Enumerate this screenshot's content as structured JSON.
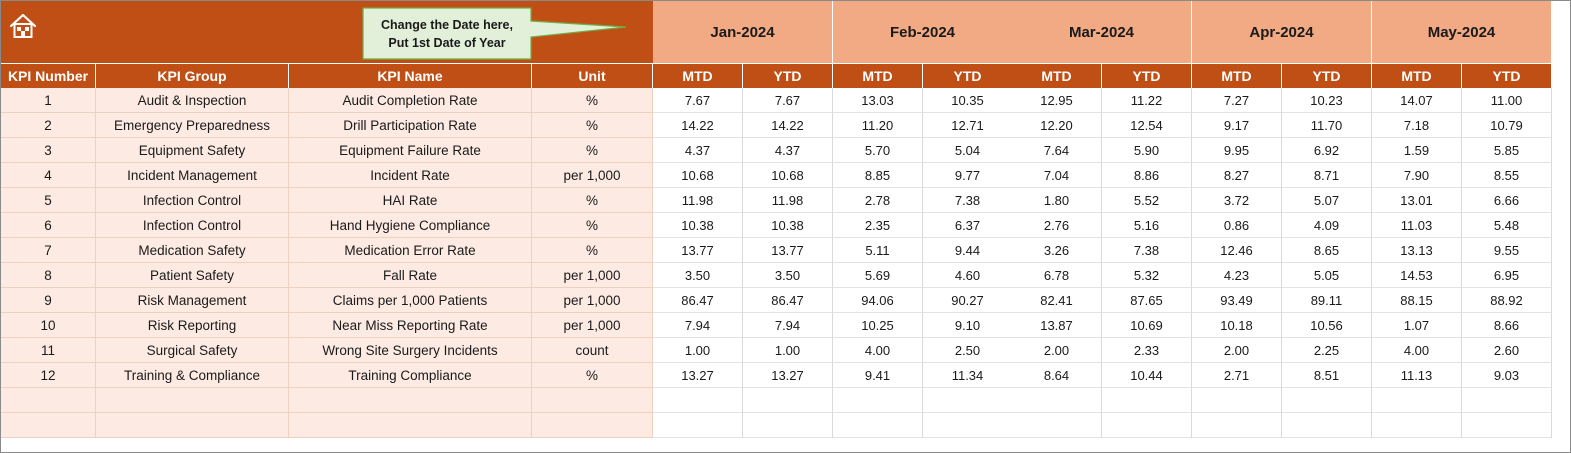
{
  "note": {
    "line1": "Change the Date here,",
    "line2": "Put 1st Date of Year"
  },
  "icons": {
    "home": "home-icon"
  },
  "colors": {
    "banner": "#c04f15",
    "month_header": "#f2aa84",
    "info_fill": "#fdebe3",
    "callout_fill": "#e2f0d9",
    "callout_border": "#70ad47"
  },
  "months": [
    "Jan-2024",
    "Feb-2024",
    "Mar-2024",
    "Apr-2024",
    "May-2024"
  ],
  "columns": {
    "kpi_number": "KPI Number",
    "kpi_group": "KPI Group",
    "kpi_name": "KPI Name",
    "unit": "Unit",
    "mtd": "MTD",
    "ytd": "YTD"
  },
  "rows": [
    {
      "no": "1",
      "group": "Audit & Inspection",
      "name": "Audit Completion Rate",
      "unit": "%",
      "vals": [
        "7.67",
        "7.67",
        "13.03",
        "10.35",
        "12.95",
        "11.22",
        "7.27",
        "10.23",
        "14.07",
        "11.00"
      ]
    },
    {
      "no": "2",
      "group": "Emergency Preparedness",
      "name": "Drill Participation Rate",
      "unit": "%",
      "vals": [
        "14.22",
        "14.22",
        "11.20",
        "12.71",
        "12.20",
        "12.54",
        "9.17",
        "11.70",
        "7.18",
        "10.79"
      ]
    },
    {
      "no": "3",
      "group": "Equipment Safety",
      "name": "Equipment Failure Rate",
      "unit": "%",
      "vals": [
        "4.37",
        "4.37",
        "5.70",
        "5.04",
        "7.64",
        "5.90",
        "9.95",
        "6.92",
        "1.59",
        "5.85"
      ]
    },
    {
      "no": "4",
      "group": "Incident Management",
      "name": "Incident Rate",
      "unit": "per 1,000",
      "vals": [
        "10.68",
        "10.68",
        "8.85",
        "9.77",
        "7.04",
        "8.86",
        "8.27",
        "8.71",
        "7.90",
        "8.55"
      ]
    },
    {
      "no": "5",
      "group": "Infection Control",
      "name": "HAI Rate",
      "unit": "%",
      "vals": [
        "11.98",
        "11.98",
        "2.78",
        "7.38",
        "1.80",
        "5.52",
        "3.72",
        "5.07",
        "13.01",
        "6.66"
      ]
    },
    {
      "no": "6",
      "group": "Infection Control",
      "name": "Hand Hygiene Compliance",
      "unit": "%",
      "vals": [
        "10.38",
        "10.38",
        "2.35",
        "6.37",
        "2.76",
        "5.16",
        "0.86",
        "4.09",
        "11.03",
        "5.48"
      ]
    },
    {
      "no": "7",
      "group": "Medication Safety",
      "name": "Medication Error Rate",
      "unit": "%",
      "vals": [
        "13.77",
        "13.77",
        "5.11",
        "9.44",
        "3.26",
        "7.38",
        "12.46",
        "8.65",
        "13.13",
        "9.55"
      ]
    },
    {
      "no": "8",
      "group": "Patient Safety",
      "name": "Fall Rate",
      "unit": "per 1,000",
      "vals": [
        "3.50",
        "3.50",
        "5.69",
        "4.60",
        "6.78",
        "5.32",
        "4.23",
        "5.05",
        "14.53",
        "6.95"
      ]
    },
    {
      "no": "9",
      "group": "Risk Management",
      "name": "Claims per 1,000 Patients",
      "unit": "per 1,000",
      "vals": [
        "86.47",
        "86.47",
        "94.06",
        "90.27",
        "82.41",
        "87.65",
        "93.49",
        "89.11",
        "88.15",
        "88.92"
      ]
    },
    {
      "no": "10",
      "group": "Risk Reporting",
      "name": "Near Miss Reporting Rate",
      "unit": "per 1,000",
      "vals": [
        "7.94",
        "7.94",
        "10.25",
        "9.10",
        "13.87",
        "10.69",
        "10.18",
        "10.56",
        "1.07",
        "8.66"
      ]
    },
    {
      "no": "11",
      "group": "Surgical Safety",
      "name": "Wrong Site Surgery Incidents",
      "unit": "count",
      "vals": [
        "1.00",
        "1.00",
        "4.00",
        "2.50",
        "2.00",
        "2.33",
        "2.00",
        "2.25",
        "4.00",
        "2.60"
      ]
    },
    {
      "no": "12",
      "group": "Training & Compliance",
      "name": "Training Compliance",
      "unit": "%",
      "vals": [
        "13.27",
        "13.27",
        "9.41",
        "11.34",
        "8.64",
        "10.44",
        "2.71",
        "8.51",
        "11.13",
        "9.03"
      ]
    }
  ]
}
